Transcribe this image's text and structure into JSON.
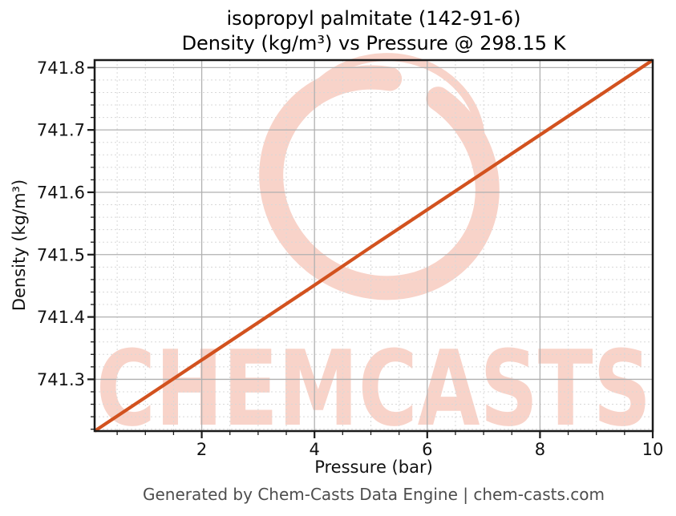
{
  "figure": {
    "title_line1": "isopropyl palmitate (142-91-6)",
    "title_line2": "Density (kg/m³) vs Pressure @ 298.15 K",
    "footer": "Generated by Chem-Casts Data Engine | chem-casts.com",
    "watermark_text": "CHEMCASTS"
  },
  "chart_data": {
    "type": "line",
    "title": "isopropyl palmitate (142-91-6)",
    "subtitle": "Density (kg/m³) vs Pressure @ 298.15 K",
    "xlabel": "Pressure (bar)",
    "ylabel": "Density (kg/m³)",
    "xlim": [
      0.1,
      10
    ],
    "ylim": [
      741.217,
      741.812
    ],
    "x_ticks": [
      2,
      4,
      6,
      8,
      10
    ],
    "y_ticks": [
      741.3,
      741.4,
      741.5,
      741.6,
      741.7,
      741.8
    ],
    "x_minor_step": 0.5,
    "y_minor_step": 0.02,
    "grid": true,
    "legend_position": "none",
    "series": [
      {
        "name": "density",
        "x": [
          0.1,
          1,
          2,
          3,
          4,
          5,
          6,
          7,
          8,
          9,
          10
        ],
        "y": [
          741.217,
          741.271,
          741.331,
          741.391,
          741.451,
          741.512,
          741.572,
          741.632,
          741.692,
          741.752,
          741.812
        ]
      }
    ],
    "colors": {
      "line": "#d2521f",
      "major_grid": "#b0b0b0",
      "minor_grid": "#d8d8d8",
      "spine": "#1a1a1a",
      "tick_label": "#111111",
      "watermark": "#f8d3c9",
      "footer_text": "#4d4d4d"
    }
  }
}
